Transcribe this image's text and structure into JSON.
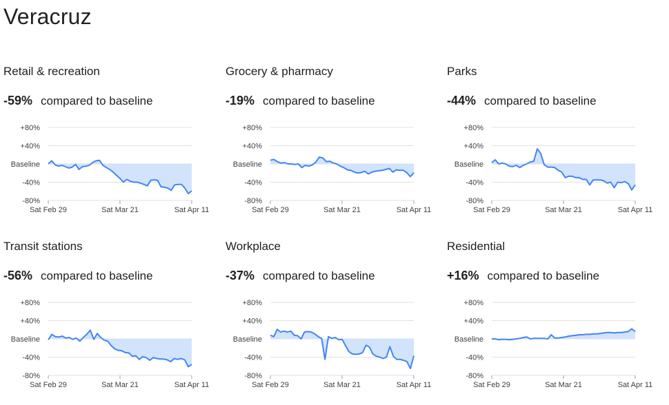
{
  "page": {
    "title": "Veracruz"
  },
  "panels": [
    {
      "title": "Retail & recreation",
      "change": "-59%",
      "suffix": "compared to baseline"
    },
    {
      "title": "Grocery & pharmacy",
      "change": "-19%",
      "suffix": "compared to baseline"
    },
    {
      "title": "Parks",
      "change": "-44%",
      "suffix": "compared to baseline"
    },
    {
      "title": "Transit stations",
      "change": "-56%",
      "suffix": "compared to baseline"
    },
    {
      "title": "Workplace",
      "change": "-37%",
      "suffix": "compared to baseline"
    },
    {
      "title": "Residential",
      "change": "+16%",
      "suffix": "compared to baseline"
    }
  ],
  "chart_data": [
    {
      "type": "area",
      "title": "Retail & recreation",
      "x_ticks": [
        "Sat Feb 29",
        "Sat Mar 21",
        "Sat Apr 11"
      ],
      "y_ticks": [
        "+80%",
        "+40%",
        "Baseline",
        "-40%",
        "-80%"
      ],
      "ylim": [
        -80,
        80
      ],
      "values": [
        0,
        7,
        -2,
        -5,
        -3,
        -6,
        -9,
        -7,
        -1,
        -12,
        -6,
        -5,
        -3,
        3,
        7,
        8,
        -3,
        -8,
        -12,
        -18,
        -25,
        -32,
        -40,
        -34,
        -38,
        -40,
        -40,
        -42,
        -45,
        -48,
        -36,
        -35,
        -36,
        -50,
        -51,
        -53,
        -58,
        -46,
        -45,
        -45,
        -53,
        -65,
        -59
      ],
      "colors": {
        "line": "#4285f4",
        "fill": "#d2e3fc",
        "grid": "#e0e0e0"
      }
    },
    {
      "type": "area",
      "title": "Grocery & pharmacy",
      "x_ticks": [
        "Sat Feb 29",
        "Sat Mar 21",
        "Sat Apr 11"
      ],
      "y_ticks": [
        "+80%",
        "+40%",
        "Baseline",
        "-40%",
        "-80%"
      ],
      "ylim": [
        -80,
        80
      ],
      "values": [
        8,
        10,
        5,
        2,
        3,
        0,
        0,
        -1,
        0,
        -8,
        -3,
        -5,
        -2,
        4,
        15,
        13,
        5,
        6,
        2,
        0,
        -5,
        -8,
        -13,
        -14,
        -18,
        -20,
        -19,
        -16,
        -22,
        -18,
        -16,
        -15,
        -14,
        -12,
        -10,
        -18,
        -13,
        -14,
        -14,
        -19,
        -28,
        -19
      ],
      "colors": {
        "line": "#4285f4",
        "fill": "#d2e3fc",
        "grid": "#e0e0e0"
      }
    },
    {
      "type": "area",
      "title": "Parks",
      "x_ticks": [
        "Sat Feb 29",
        "Sat Mar 21",
        "Sat Apr 11"
      ],
      "y_ticks": [
        "+80%",
        "+40%",
        "Baseline",
        "-40%",
        "-80%"
      ],
      "ylim": [
        -80,
        80
      ],
      "values": [
        3,
        9,
        0,
        2,
        0,
        -5,
        -6,
        -3,
        -8,
        -3,
        0,
        4,
        6,
        33,
        23,
        -2,
        -7,
        -7,
        -8,
        -14,
        -18,
        -30,
        -27,
        -27,
        -30,
        -30,
        -34,
        -34,
        -46,
        -35,
        -35,
        -35,
        -37,
        -42,
        -40,
        -52,
        -40,
        -41,
        -39,
        -43,
        -57,
        -46
      ],
      "colors": {
        "line": "#4285f4",
        "fill": "#d2e3fc",
        "grid": "#e0e0e0"
      }
    },
    {
      "type": "area",
      "title": "Transit stations",
      "x_ticks": [
        "Sat Feb 29",
        "Sat Mar 21",
        "Sat Apr 11"
      ],
      "y_ticks": [
        "+80%",
        "+40%",
        "Baseline",
        "-40%",
        "-80%"
      ],
      "ylim": [
        -80,
        80
      ],
      "values": [
        -2,
        10,
        5,
        4,
        6,
        2,
        3,
        -1,
        2,
        -5,
        3,
        10,
        19,
        -1,
        12,
        3,
        -3,
        -5,
        -15,
        -22,
        -25,
        -26,
        -30,
        -31,
        -38,
        -37,
        -45,
        -39,
        -41,
        -47,
        -41,
        -43,
        -44,
        -44,
        -46,
        -50,
        -43,
        -45,
        -43,
        -46,
        -61,
        -56
      ],
      "colors": {
        "line": "#4285f4",
        "fill": "#d2e3fc",
        "grid": "#e0e0e0"
      }
    },
    {
      "type": "area",
      "title": "Workplace",
      "x_ticks": [
        "Sat Feb 29",
        "Sat Mar 21",
        "Sat Apr 11"
      ],
      "y_ticks": [
        "+80%",
        "+40%",
        "Baseline",
        "-40%",
        "-80%"
      ],
      "ylim": [
        -80,
        80
      ],
      "values": [
        8,
        5,
        21,
        15,
        17,
        15,
        17,
        8,
        7,
        0,
        15,
        16,
        15,
        11,
        5,
        1,
        -45,
        5,
        1,
        3,
        -2,
        -1,
        -15,
        -28,
        -33,
        -34,
        -33,
        -30,
        -14,
        -18,
        -33,
        -38,
        -40,
        -43,
        -40,
        -17,
        -38,
        -45,
        -45,
        -47,
        -50,
        -65,
        -37
      ],
      "colors": {
        "line": "#4285f4",
        "fill": "#d2e3fc",
        "grid": "#e0e0e0"
      }
    },
    {
      "type": "area",
      "title": "Residential",
      "x_ticks": [
        "Sat Feb 29",
        "Sat Mar 21",
        "Sat Apr 11"
      ],
      "y_ticks": [
        "+80%",
        "+40%",
        "Baseline",
        "-40%",
        "-80%"
      ],
      "ylim": [
        -80,
        80
      ],
      "values": [
        0,
        0,
        -2,
        -1,
        -1,
        -2,
        -1,
        0,
        1,
        3,
        4,
        0,
        1,
        1,
        1,
        1,
        0,
        9,
        2,
        2,
        3,
        4,
        6,
        7,
        8,
        9,
        9,
        10,
        10,
        11,
        11,
        12,
        13,
        14,
        14,
        13,
        14,
        14,
        15,
        16,
        22,
        16
      ],
      "colors": {
        "line": "#4285f4",
        "fill": "#d2e3fc",
        "grid": "#e0e0e0"
      }
    }
  ]
}
